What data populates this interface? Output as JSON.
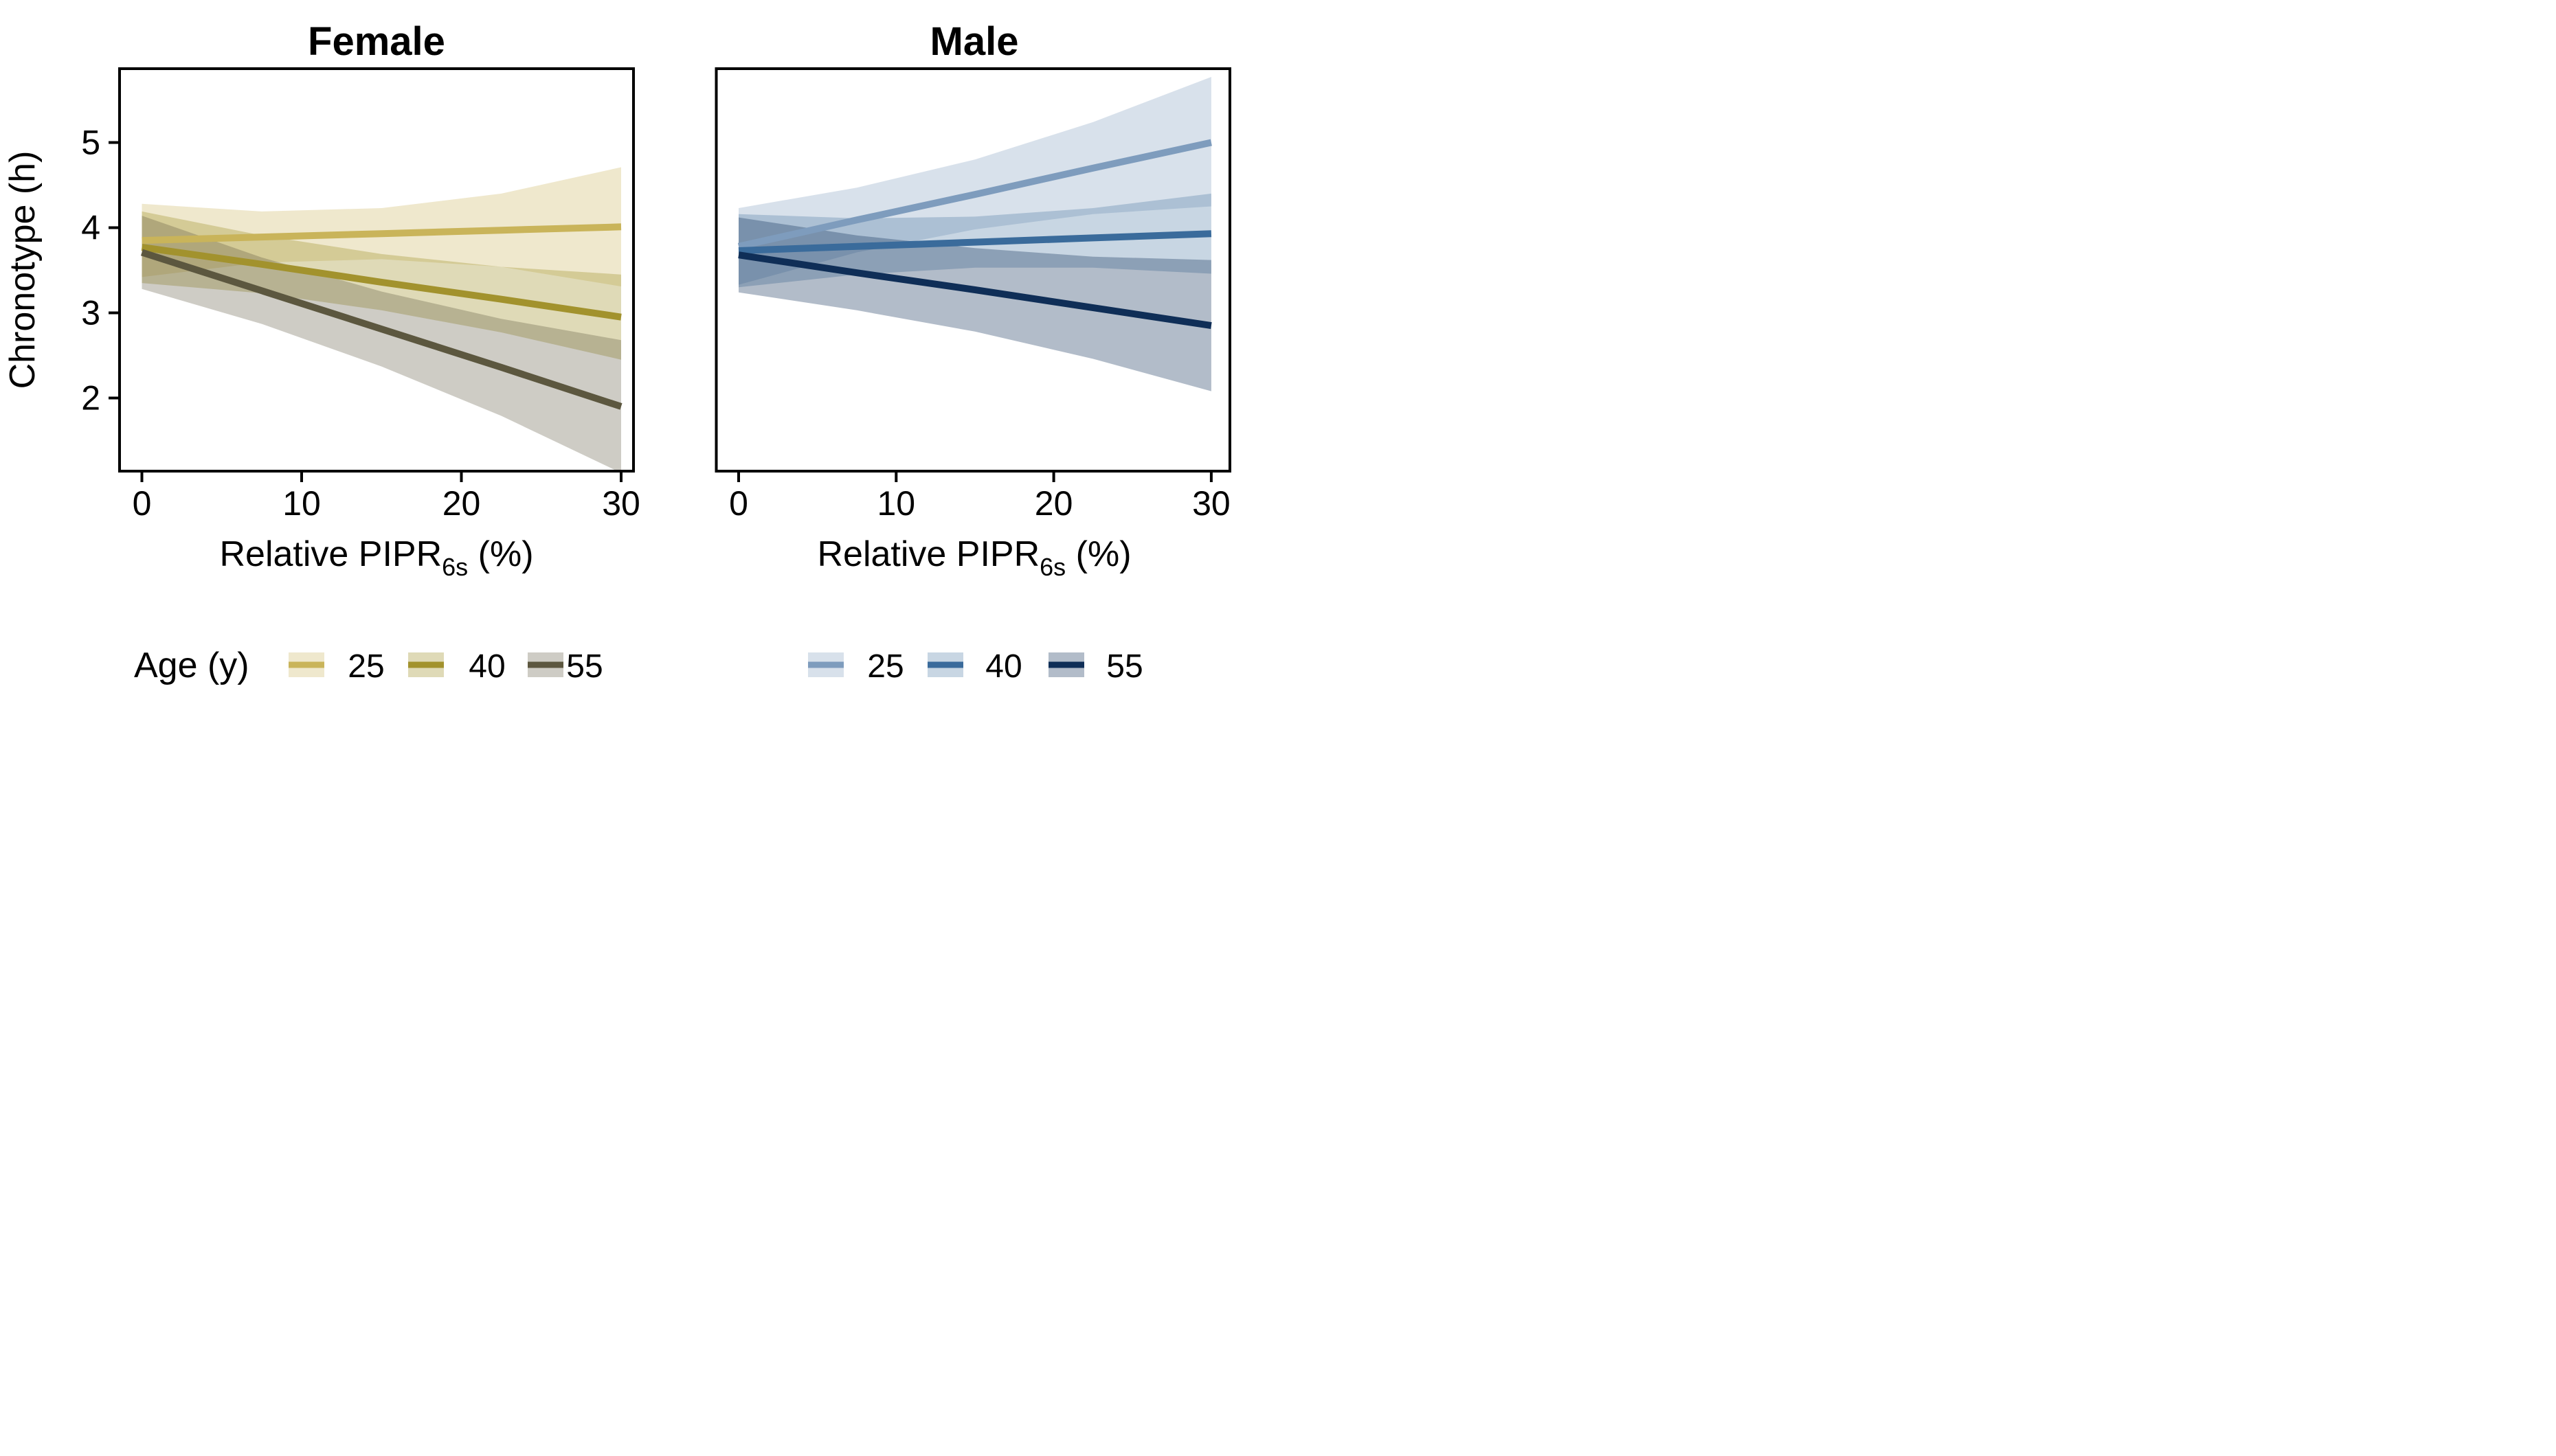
{
  "axes": {
    "ylabel": "Chronotype (h)",
    "xlabel_pre": "Relative PIPR",
    "xlabel_sub": "6s",
    "xlabel_post": " (%)",
    "x_ticks": [
      0,
      10,
      20,
      30
    ],
    "y_ticks": [
      5,
      4,
      3,
      2
    ]
  },
  "legend": {
    "title": "Age (y)",
    "entries": [
      "25",
      "40",
      "55"
    ]
  },
  "chart_data": [
    {
      "type": "line",
      "title": "Female",
      "xlabel": "Relative PIPR6s (%)",
      "ylabel": "Chronotype (h)",
      "xlim": [
        -1.4,
        30.7
      ],
      "ylim": [
        1.14,
        5.87
      ],
      "x_ticks": [
        0,
        10,
        20,
        30
      ],
      "y_ticks": [
        2,
        3,
        4,
        5
      ],
      "grid": false,
      "legend_position": "bottom",
      "series": [
        {
          "name": "25",
          "line_color": "#c9b45a",
          "band_color": "#c9b45a",
          "band_opacity": 0.3,
          "x": [
            0,
            7.5,
            15,
            22.5,
            30
          ],
          "y": [
            3.85,
            3.89,
            3.93,
            3.97,
            4.01
          ],
          "ci_upper": [
            4.28,
            4.19,
            4.23,
            4.4,
            4.71
          ],
          "ci_lower": [
            3.42,
            3.59,
            3.63,
            3.54,
            3.31
          ]
        },
        {
          "name": "40",
          "line_color": "#a2922d",
          "band_color": "#a2922d",
          "band_opacity": 0.34,
          "x": [
            0,
            7.5,
            15,
            22.5,
            30
          ],
          "y": [
            3.77,
            3.57,
            3.36,
            3.16,
            2.95
          ],
          "ci_upper": [
            4.19,
            3.91,
            3.69,
            3.54,
            3.45
          ],
          "ci_lower": [
            3.35,
            3.23,
            3.03,
            2.77,
            2.45
          ]
        },
        {
          "name": "55",
          "line_color": "#5c573f",
          "band_color": "#5c573f",
          "band_opacity": 0.3,
          "x": [
            0,
            7.5,
            15,
            22.5,
            30
          ],
          "y": [
            3.71,
            3.26,
            2.81,
            2.36,
            1.9
          ],
          "ci_upper": [
            4.14,
            3.65,
            3.25,
            2.93,
            2.68
          ],
          "ci_lower": [
            3.28,
            2.87,
            2.37,
            1.79,
            1.12
          ]
        }
      ]
    },
    {
      "type": "line",
      "title": "Male",
      "xlabel": "Relative PIPR6s (%)",
      "ylabel": "Chronotype (h)",
      "xlim": [
        -1.4,
        31.2
      ],
      "ylim": [
        1.14,
        5.87
      ],
      "x_ticks": [
        0,
        10,
        20,
        30
      ],
      "y_ticks": [
        2,
        3,
        4,
        5
      ],
      "grid": false,
      "legend_position": "bottom",
      "series": [
        {
          "name": "25",
          "line_color": "#7e9cbd",
          "band_color": "#7e9cbd",
          "band_opacity": 0.3,
          "x": [
            0,
            7.5,
            15,
            22.5,
            30
          ],
          "y": [
            3.78,
            4.09,
            4.39,
            4.7,
            5.0
          ],
          "ci_upper": [
            4.23,
            4.47,
            4.8,
            5.24,
            5.77
          ],
          "ci_lower": [
            3.33,
            3.71,
            3.98,
            4.16,
            4.25
          ]
        },
        {
          "name": "40",
          "line_color": "#3a6b9b",
          "band_color": "#3a6b9b",
          "band_opacity": 0.28,
          "x": [
            0,
            7.5,
            15,
            22.5,
            30
          ],
          "y": [
            3.73,
            3.78,
            3.83,
            3.88,
            3.93
          ],
          "ci_upper": [
            4.16,
            4.11,
            4.13,
            4.23,
            4.4
          ],
          "ci_lower": [
            3.3,
            3.45,
            3.53,
            3.53,
            3.46
          ]
        },
        {
          "name": "55",
          "line_color": "#0f2e57",
          "band_color": "#0f2e57",
          "band_opacity": 0.32,
          "x": [
            0,
            7.5,
            15,
            22.5,
            30
          ],
          "y": [
            3.68,
            3.47,
            3.27,
            3.06,
            2.85
          ],
          "ci_upper": [
            4.12,
            3.91,
            3.76,
            3.66,
            3.62
          ],
          "ci_lower": [
            3.24,
            3.03,
            2.78,
            2.46,
            2.08
          ]
        }
      ]
    }
  ]
}
